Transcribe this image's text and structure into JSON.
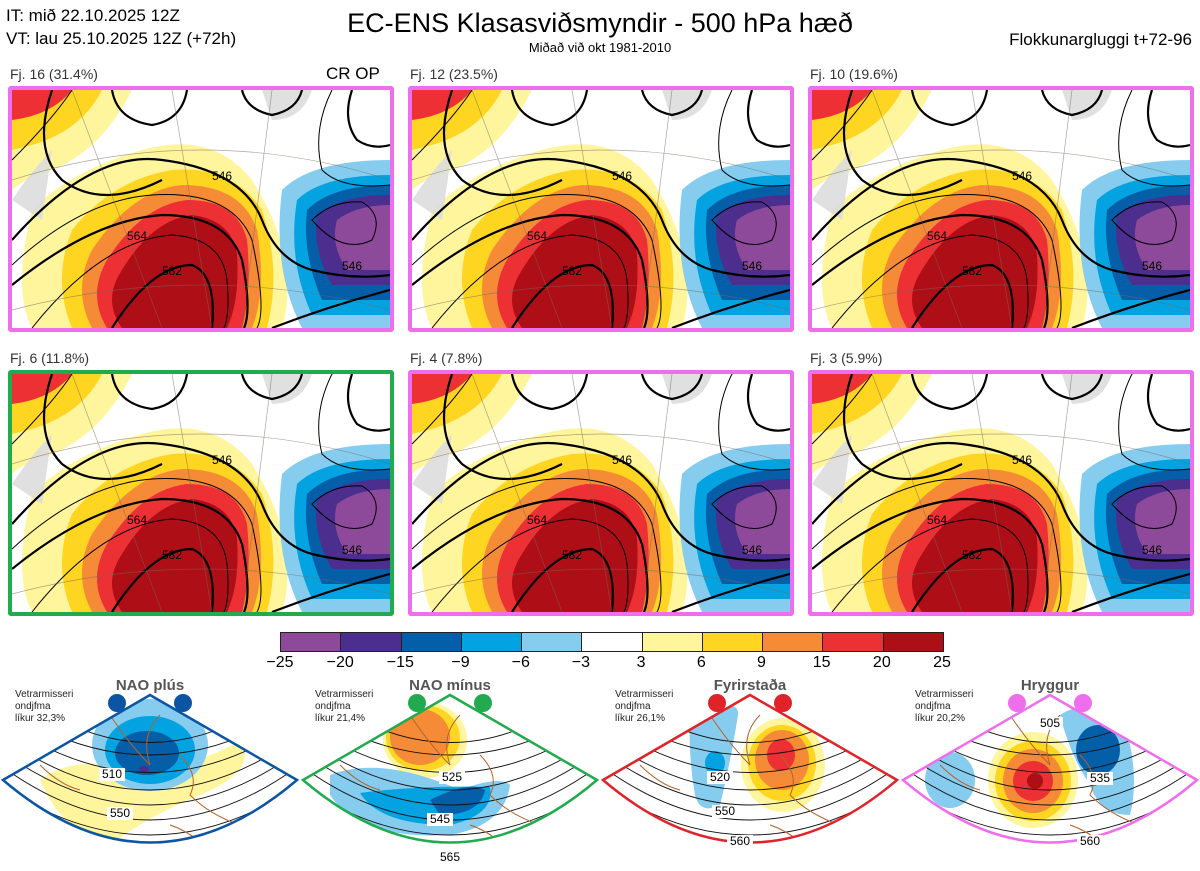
{
  "header": {
    "it": "IT: mið 22.10.2025 12Z",
    "vt": "VT: lau 25.10.2025 12Z  (+72h)",
    "title": "EC-ENS Klasasviðsmyndir - 500 hPa hæð",
    "subtitle": "Miðað við okt 1981-2010",
    "window": "Flokkunargluggi t+72-96",
    "crop": "CR OP"
  },
  "panels": [
    {
      "label": "Fj. 16 (31.4%)",
      "regime_color": "#ee6eee",
      "contours": [
        "546",
        "564",
        "582",
        "546"
      ]
    },
    {
      "label": "Fj. 12 (23.5%)",
      "regime_color": "#ee6eee",
      "contours": [
        "546",
        "564",
        "582",
        "546"
      ]
    },
    {
      "label": "Fj. 10 (19.6%)",
      "regime_color": "#ee6eee",
      "contours": [
        "546",
        "564",
        "582",
        "546"
      ]
    },
    {
      "label": "Fj. 6 (11.8%)",
      "regime_color": "#21aa4e",
      "contours": [
        "546",
        "564",
        "582",
        "546"
      ]
    },
    {
      "label": "Fj. 4 (7.8%)",
      "regime_color": "#ee6eee",
      "contours": [
        "546",
        "564",
        "582",
        "546"
      ]
    },
    {
      "label": "Fj. 3 (5.9%)",
      "regime_color": "#ee6eee",
      "contours": [
        "546",
        "564",
        "582",
        "546"
      ]
    }
  ],
  "colorbar": {
    "ticks": [
      "−25",
      "−20",
      "−15",
      "−9",
      "−6",
      "−3",
      "3",
      "6",
      "9",
      "15",
      "20",
      "25"
    ],
    "colors": [
      "#8e4a9a",
      "#4b2e8e",
      "#055ea8",
      "#03a3e2",
      "#86ccef",
      "#ffffff",
      "#fff59d",
      "#fed520",
      "#f58a37",
      "#ed3034",
      "#ae0e16"
    ]
  },
  "regimes": [
    {
      "title": "NAO plús",
      "note": [
        "Vetrarmisseri",
        "ondjfma",
        "líkur 32,3%"
      ],
      "color": "#0b55a3",
      "labels": [
        "510",
        "550"
      ]
    },
    {
      "title": "NAO mínus",
      "note": [
        "Vetrarmisseri",
        "ondjfma",
        "líkur 21,4%"
      ],
      "color": "#21aa4e",
      "labels": [
        "525",
        "545",
        "565"
      ]
    },
    {
      "title": "Fyrirstaða",
      "note": [
        "Vetrarmisseri",
        "ondjfma",
        "líkur 26,1%"
      ],
      "color": "#e02328",
      "labels": [
        "520",
        "550",
        "560"
      ]
    },
    {
      "title": "Hryggur",
      "note": [
        "Vetrarmisseri",
        "ondjfma",
        "líkur 20,2%"
      ],
      "color": "#ee6eee",
      "labels": [
        "505",
        "535",
        "560"
      ]
    }
  ]
}
